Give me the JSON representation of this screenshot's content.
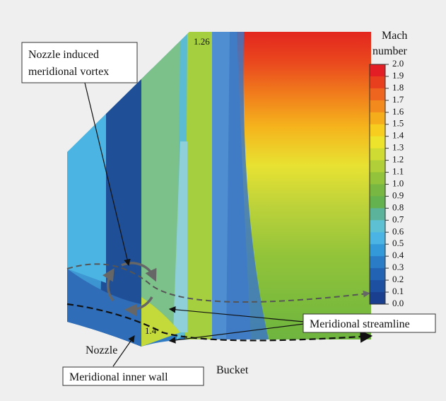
{
  "annotations": {
    "vortex_label": [
      "Nozzle induced",
      "meridional vortex"
    ],
    "streamline_label": "Meridional streamline",
    "inner_wall_label": "Meridional inner wall",
    "nozzle_label": "Nozzle",
    "bucket_label": "Bucket",
    "contour_top": "1.26",
    "contour_bottom": "1.4"
  },
  "colorbar": {
    "title": [
      "Mach",
      "number"
    ],
    "ticks": [
      "2.0",
      "1.9",
      "1.8",
      "1.7",
      "1.6",
      "1.5",
      "1.4",
      "1.3",
      "1.2",
      "1.1",
      "1.0",
      "0.9",
      "0.8",
      "0.7",
      "0.6",
      "0.5",
      "0.4",
      "0.3",
      "0.2",
      "0.1",
      "0.0"
    ]
  }
}
